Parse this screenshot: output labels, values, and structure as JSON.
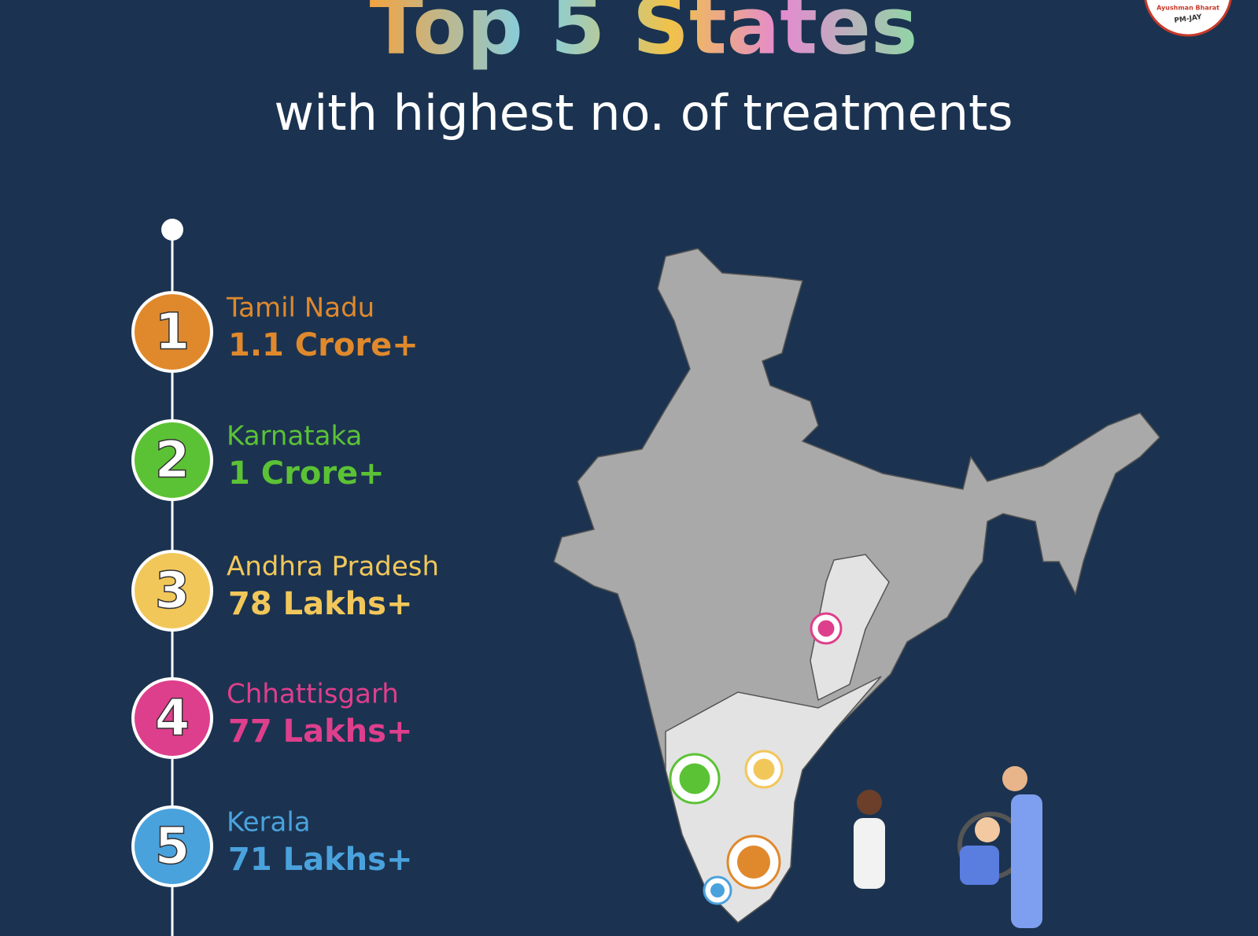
{
  "header": {
    "title": "Top 5 States",
    "subtitle": "with highest no. of treatments"
  },
  "logo": {
    "name": "Ayushman Bharat",
    "scheme": "PM-JAY"
  },
  "states": [
    {
      "rank": "1",
      "name": "Tamil Nadu",
      "treatments": "1.1 Crore+",
      "color": "#e0892c"
    },
    {
      "rank": "2",
      "name": "Karnataka",
      "treatments": "1 Crore+",
      "color": "#5cc235"
    },
    {
      "rank": "3",
      "name": "Andhra Pradesh",
      "treatments": "78 Lakhs+",
      "color": "#f2c75a"
    },
    {
      "rank": "4",
      "name": "Chhattisgarh",
      "treatments": "77 Lakhs+",
      "color": "#de3f8c"
    },
    {
      "rank": "5",
      "name": "Kerala",
      "treatments": "71 Lakhs+",
      "color": "#4aa2dd"
    }
  ]
}
